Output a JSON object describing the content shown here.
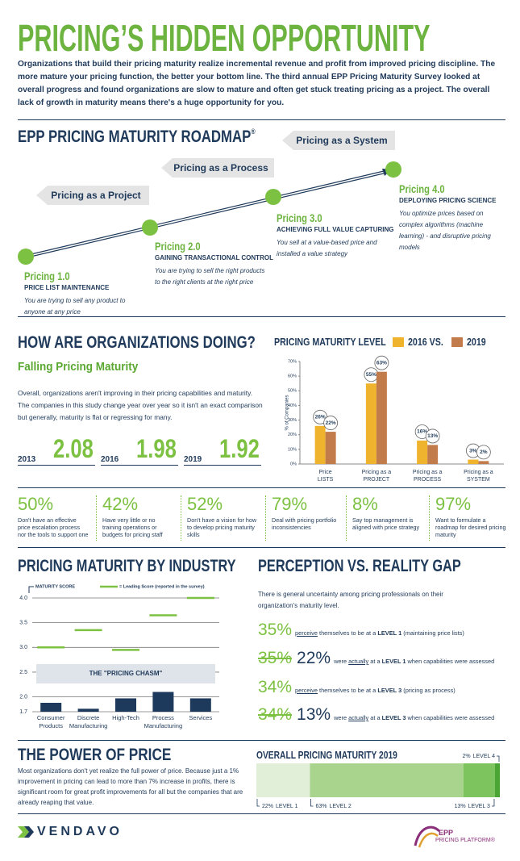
{
  "header": {
    "title": "PRICING’S HIDDEN OPPORTUNITY",
    "intro": "Organizations that build their pricing maturity realize incremental revenue and profit from improved pricing discipline. The more mature your pricing function, the better your bottom line. The third annual EPP Pricing Maturity Survey looked at overall progress and found organizations are slow to mature and often get stuck treating pricing as a project. The overall lack of growth in maturity means there's a huge opportunity for you."
  },
  "roadmap": {
    "title": "EPP PRICING MATURITY ROADMAP",
    "mark": "®",
    "bands": [
      "Pricing as a Project",
      "Pricing as a Process",
      "Pricing as a System"
    ],
    "stages": [
      {
        "name": "Pricing 1.0",
        "subtitle": "PRICE LIST MAINTENANCE",
        "text": "You are trying to sell any product to anyone at any price"
      },
      {
        "name": "Pricing 2.0",
        "subtitle": "GAINING TRANSACTIONAL CONTROL",
        "text": "You are trying to sell the right products to the right clients at the right price"
      },
      {
        "name": "Pricing 3.0",
        "subtitle": "ACHIEVING FULL VALUE CAPTURING",
        "text": "You sell at a value-based price and installed a value strategy"
      },
      {
        "name": "Pricing 4.0",
        "subtitle": "DEPLOYING PRICING SCIENCE",
        "text": "You optimize prices based on complex algorithms (machine learning) - and disruptive pricing models"
      }
    ]
  },
  "doing": {
    "title": "HOW ARE ORGANIZATIONS DOING?",
    "subtitle": "Falling Pricing Maturity",
    "text": "Overall, organizations aren't improving in their pricing capabilities and maturity. The companies in this study change year over year so it isn't an exact comparison but generally, maturity is flat or regressing for many.",
    "scores": [
      {
        "year": "2013",
        "value": 2.08
      },
      {
        "year": "2016",
        "value": 1.98
      },
      {
        "year": "2019",
        "value": 1.92
      }
    ]
  },
  "stats": [
    {
      "figure": "50%",
      "text": "Don't have an effective price escalation process nor the tools to support one"
    },
    {
      "figure": "42%",
      "text": "Have very little or no training operations or budgets for pricing staff"
    },
    {
      "figure": "52%",
      "text": "Don't have a vision for how to develop pricing maturity skills"
    },
    {
      "figure": "79%",
      "text": "Deal with pricing portfolio inconsistencies"
    },
    {
      "figure": "8%",
      "text": "Say top management is aligned with price strategy"
    },
    {
      "figure": "97%",
      "text": "Want to formulate a roadmap for desired pricing maturity"
    }
  ],
  "industry": {
    "title": "PRICING MATURITY BY INDUSTRY"
  },
  "perception": {
    "title": "PERCEPTION VS. REALITY GAP",
    "intro": "There is general uncertainty among pricing professionals on their organization's maturity level.",
    "rows": [
      {
        "figure": "35%",
        "parts": [
          {
            "text": "perceive",
            "style": "underline"
          },
          {
            "text": " themselves to be at a ",
            "style": "plain"
          },
          {
            "text": "LEVEL 1",
            "style": "bold"
          },
          {
            "text": " (maintaining price lists)",
            "style": "plain"
          }
        ]
      },
      {
        "struck": "35%",
        "figure": "22%",
        "parts": [
          {
            "text": "were ",
            "style": "plain"
          },
          {
            "text": "actually",
            "style": "underline"
          },
          {
            "text": " at a ",
            "style": "plain"
          },
          {
            "text": "LEVEL 1",
            "style": "bold"
          },
          {
            "text": " when capabilities were assessed",
            "style": "plain"
          }
        ]
      },
      {
        "figure": "34%",
        "parts": [
          {
            "text": "perceive",
            "style": "underline"
          },
          {
            "text": " themselves to be at a ",
            "style": "plain"
          },
          {
            "text": "LEVEL 3",
            "style": "bold"
          },
          {
            "text": " (pricing as process)",
            "style": "plain"
          }
        ]
      },
      {
        "struck": "34%",
        "figure": "13%",
        "parts": [
          {
            "text": "were ",
            "style": "plain"
          },
          {
            "text": "actually",
            "style": "underline"
          },
          {
            "text": " at a ",
            "style": "plain"
          },
          {
            "text": "LEVEL 3",
            "style": "bold"
          },
          {
            "text": " when capabilities were assessed",
            "style": "plain"
          }
        ]
      }
    ]
  },
  "power": {
    "title": "THE POWER OF PRICE",
    "text": "Most organizations don't yet realize the full power of price. Because just a 1% improvement in pricing can lead to more than 7% increase in profits, there is significant room for great profit improvements for all but the companies that are already reaping that value."
  },
  "footer": {
    "brand": "VENDAVO",
    "partner": "EPP",
    "partner_line": "PRICING PLATFORM®"
  },
  "chart_data": [
    {
      "type": "bar",
      "title": "PRICING MATURITY LEVEL",
      "y_label": "% of Companies",
      "categories": [
        "Price\nLISTS",
        "Pricing as a\nPROJECT",
        "Pricing as a\nPROCESS",
        "Pricing as a\nSYSTEM"
      ],
      "series": [
        {
          "name": "2016 VS.",
          "color": "#f0b32d",
          "values": [
            26,
            55,
            16,
            3
          ],
          "value_labels": [
            "26%",
            "55%",
            "16%",
            "3%"
          ]
        },
        {
          "name": "2019",
          "color": "#c27b4b",
          "values": [
            22,
            63,
            13,
            2
          ],
          "value_labels": [
            "22%",
            "63%",
            "13%",
            "2%"
          ]
        }
      ],
      "ylim": [
        0,
        70
      ],
      "yticks": [
        {
          "value": 0,
          "label": "0%"
        },
        {
          "value": 10,
          "label": "10%"
        },
        {
          "value": 20,
          "label": "20%"
        },
        {
          "value": 30,
          "label": "30%"
        },
        {
          "value": 40,
          "label": "40%"
        },
        {
          "value": 50,
          "label": "50%"
        },
        {
          "value": 60,
          "label": "60%"
        },
        {
          "value": 70,
          "label": "70%"
        }
      ]
    },
    {
      "type": "bar",
      "categories": [
        "Consumer\nProducts",
        "Discrete\nManufacturing",
        "High-Tech",
        "Process\nManufacturing",
        "Services"
      ],
      "series": [
        {
          "name": "MATURITY SCORE",
          "color": "#1d3a5c",
          "values": [
            1.88,
            1.76,
            1.97,
            2.1,
            1.97
          ]
        },
        {
          "name": "= Leading Score (reported in the survey)",
          "color": "#7dc142",
          "mark": "line",
          "values": [
            3.0,
            3.35,
            2.95,
            3.65,
            4.0
          ]
        }
      ],
      "annotation": "THE \"PRICING CHASM\"",
      "ylim": [
        1.7,
        4.0
      ],
      "yticks": [
        1.7,
        {
          "value": 2,
          "label": "2.0"
        },
        2.5,
        {
          "value": 3,
          "label": "3.0"
        },
        3.5,
        {
          "value": 4,
          "label": "4.0"
        }
      ],
      "grid": true
    },
    {
      "type": "stacked_bar",
      "title": "OVERALL PRICING MATURITY 2019",
      "xlim": [
        0,
        100
      ],
      "series": [
        {
          "name": "LEVEL 1",
          "color": "#e2efd8",
          "values": [
            22
          ],
          "value_labels": [
            "22%"
          ]
        },
        {
          "name": "LEVEL 2",
          "color": "#a9d48e",
          "values": [
            63
          ],
          "value_labels": [
            "63%"
          ]
        },
        {
          "name": "LEVEL 3",
          "color": "#7dc45f",
          "values": [
            13
          ],
          "value_labels": [
            "13%"
          ]
        },
        {
          "name": "LEVEL 4",
          "color": "#4aa534",
          "values": [
            2
          ],
          "value_labels": [
            "2%"
          ]
        }
      ]
    }
  ]
}
